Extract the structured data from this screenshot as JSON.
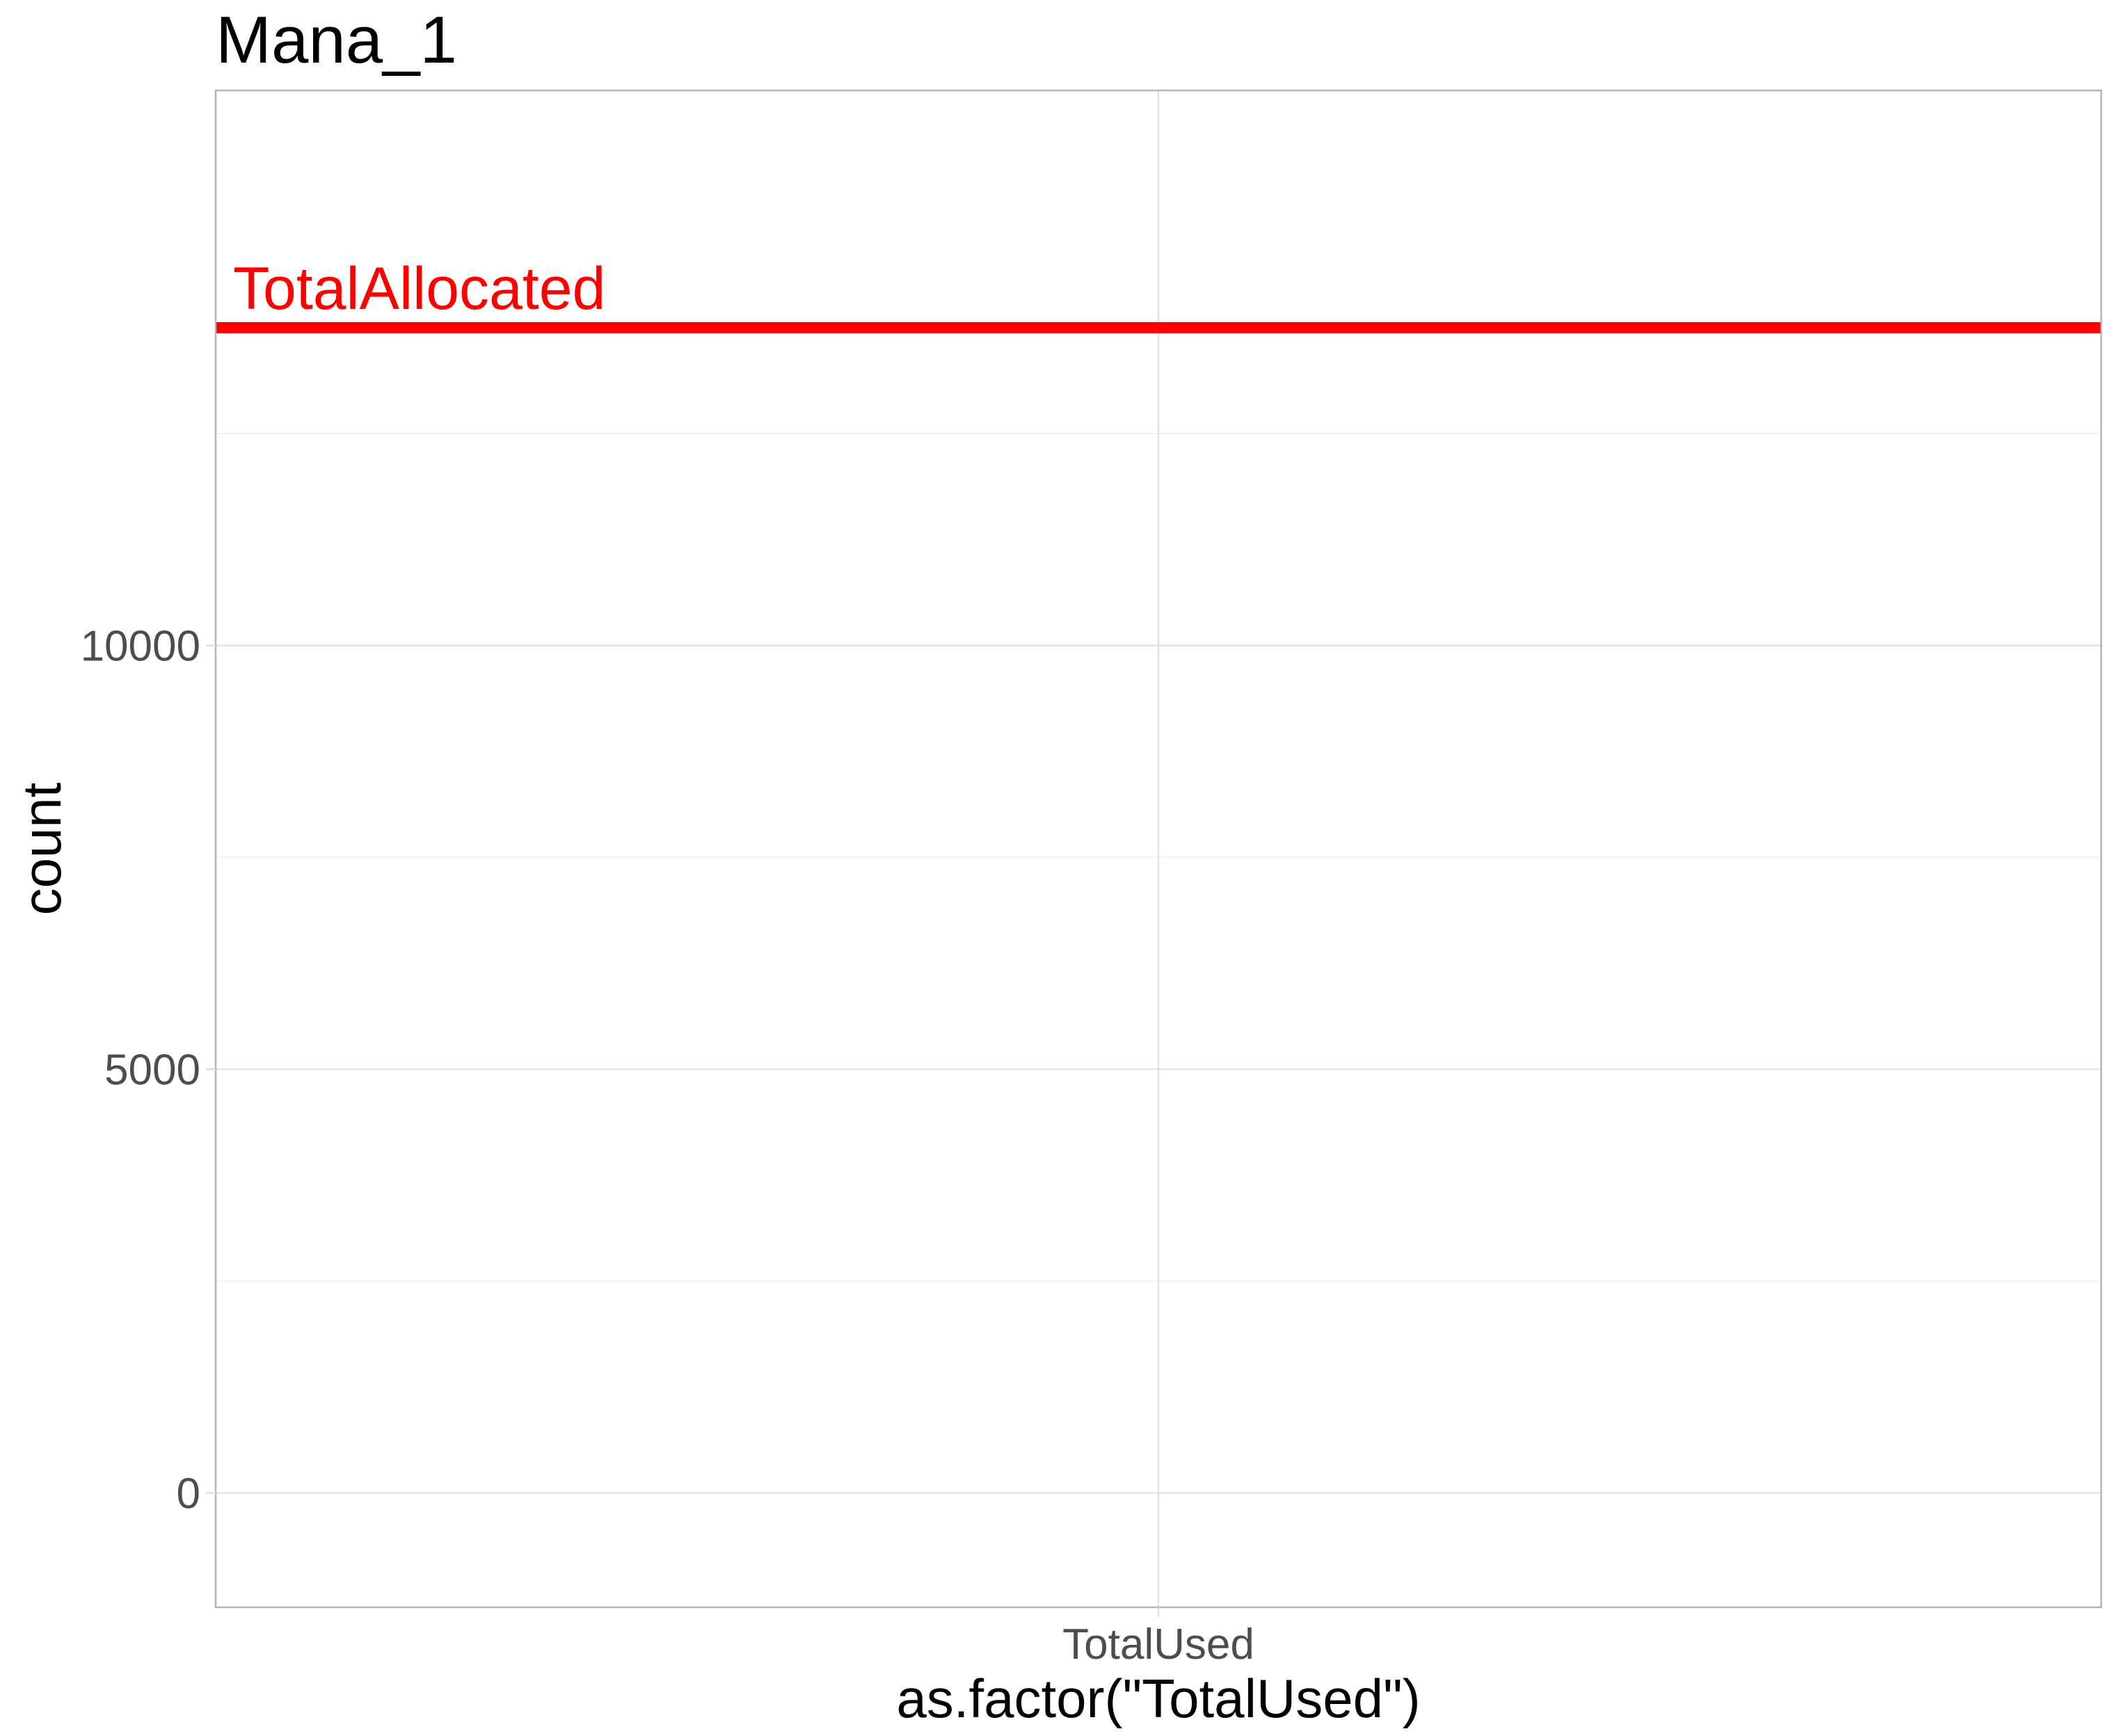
{
  "chart_data": {
    "type": "bar",
    "title": "Mana_1",
    "xlabel": "as.factor(\"TotalUsed\")",
    "ylabel": "count",
    "categories": [
      "TotalUsed"
    ],
    "series": [
      {
        "values": [
          0
        ]
      }
    ],
    "ylim": [
      -1350,
      16550
    ],
    "yticks": [
      0,
      5000,
      10000
    ],
    "minor_gridlines": [
      2500,
      7500,
      12500
    ],
    "grid": true,
    "legend": "none",
    "reference_lines": [
      {
        "label": "TotalAllocated",
        "y": 13750,
        "color": "#ff0000"
      }
    ],
    "colors": {
      "background": "#ffffff",
      "panel_border": "#b3b3b3",
      "grid_major": "#dedede",
      "grid_minor": "#efefef",
      "tick_text": "#4d4d4d",
      "title_text": "#000000",
      "reference": "#ff0000"
    }
  }
}
